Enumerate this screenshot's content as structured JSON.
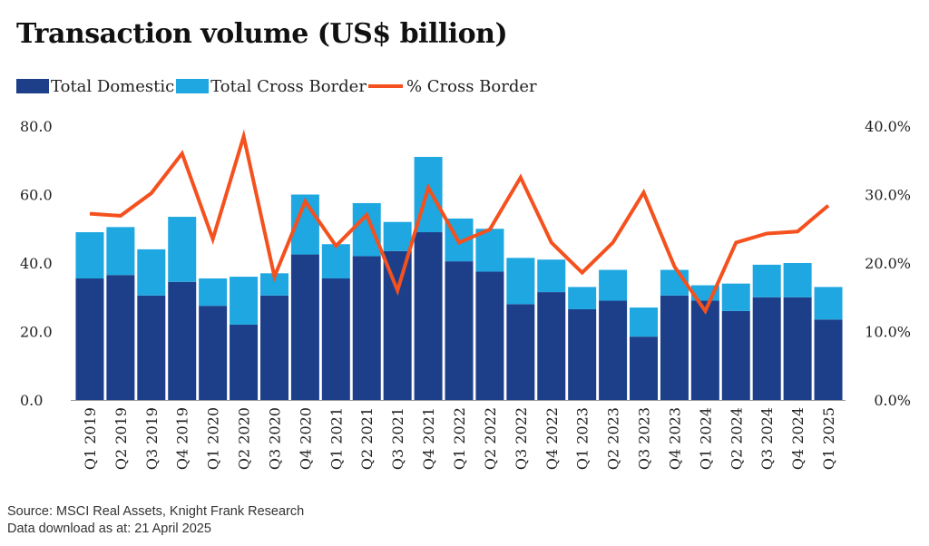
{
  "chart_data": {
    "type": "bar",
    "title": "Transaction volume (US$ billion)",
    "categories": [
      "Q1 2019",
      "Q2 2019",
      "Q3 2019",
      "Q4 2019",
      "Q1 2020",
      "Q2 2020",
      "Q3 2020",
      "Q4 2020",
      "Q1 2021",
      "Q2 2021",
      "Q3 2021",
      "Q4 2021",
      "Q1 2022",
      "Q2 2022",
      "Q3 2022",
      "Q4 2022",
      "Q1 2023",
      "Q2 2023",
      "Q3 2023",
      "Q4 2023",
      "Q1 2024",
      "Q2 2024",
      "Q3 2024",
      "Q4 2024",
      "Q1 2025"
    ],
    "stacked": true,
    "series": [
      {
        "name": "Total Domestic",
        "axis": "left",
        "color": "#1d3f8a",
        "values": [
          35.5,
          36.5,
          30.5,
          34.5,
          27.5,
          22.0,
          30.5,
          42.5,
          35.5,
          42.0,
          43.5,
          49.0,
          40.5,
          37.5,
          28.0,
          31.5,
          26.5,
          29.0,
          18.5,
          30.5,
          29.0,
          26.0,
          30.0,
          30.0,
          23.5
        ]
      },
      {
        "name": "Total Cross Border",
        "axis": "left",
        "color": "#1ea7e0",
        "values": [
          13.5,
          14.0,
          13.5,
          19.0,
          8.0,
          14.0,
          6.5,
          17.5,
          10.0,
          15.5,
          8.5,
          22.0,
          12.5,
          12.5,
          13.5,
          9.5,
          6.5,
          9.0,
          8.5,
          7.5,
          4.5,
          8.0,
          9.5,
          10.0,
          9.5
        ]
      },
      {
        "name": "% Cross Border",
        "type": "line",
        "axis": "right",
        "color": "#f4511e",
        "values": [
          27.2,
          26.9,
          30.2,
          36.0,
          23.5,
          38.5,
          18.0,
          29.0,
          22.5,
          27.0,
          16.0,
          31.0,
          23.0,
          24.9,
          32.5,
          23.0,
          18.6,
          23.0,
          30.3,
          19.5,
          13.0,
          23.0,
          24.3,
          24.6,
          28.4
        ]
      }
    ],
    "y_left": {
      "min": 0,
      "max": 80,
      "ticks": [
        "0.0",
        "20.0",
        "40.0",
        "60.0",
        "80.0"
      ]
    },
    "y_right": {
      "min": 0,
      "max": 40,
      "ticks": [
        "0.0%",
        "10.0%",
        "20.0%",
        "30.0%",
        "40.0%"
      ]
    },
    "grid": false,
    "legend_position": "top-left"
  },
  "source": {
    "line1": "Source: MSCI Real Assets, Knight Frank Research",
    "line2": "Data download as at: 21 April 2025"
  }
}
